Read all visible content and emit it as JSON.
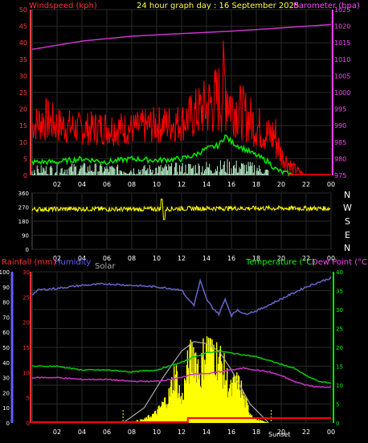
{
  "header": {
    "windspeed_label": "Windspeed (kph)",
    "title": "24 hour graph day : 16 September 2025",
    "barometer_label": "Barometer (hpa)"
  },
  "wind_dir_axis_labels": [
    "N",
    "W",
    "S",
    "E",
    "N"
  ],
  "lower_header": {
    "rainfall_label": "Rainfall (mm)",
    "humidity_label": "Humidity",
    "solar_label": "Solar",
    "temperature_label": "Temperature (°C)",
    "dewpoint_label": "Dew Point (°C)",
    "sunset_label": "Sunset"
  },
  "colors": {
    "windspeed": "#ff0000",
    "wind_avg": "#00ee00",
    "gust_fill": "#b8f0c8",
    "barometer": "#cc33cc",
    "wind_dir": "#ffff00",
    "rainfall": "#ff0000",
    "humidity": "#6666cc",
    "solar_fill": "#ffff00",
    "solar_max": "#aaaaaa",
    "temperature": "#00cc00",
    "dewpoint": "#cc33cc",
    "grid": "#2a2a2a",
    "axis_left_wind": "#ff4040",
    "axis_right_baro": "#ff44ff",
    "axis_humidity": "#6060ff",
    "axis_temp": "#00ff00",
    "axis_rain": "#ff3030"
  },
  "chart_data": [
    {
      "type": "line",
      "name": "wind-barometer",
      "x_ticks": [
        "02",
        "04",
        "06",
        "08",
        "10",
        "12",
        "14",
        "16",
        "18",
        "20",
        "22",
        "00"
      ],
      "y_left_ticks": [
        0,
        5,
        10,
        15,
        20,
        25,
        30,
        35,
        40,
        45,
        50
      ],
      "y_left_range": [
        0,
        50
      ],
      "y_right_ticks": [
        975,
        980,
        985,
        990,
        995,
        1000,
        1005,
        1010,
        1015,
        1020,
        1025
      ],
      "y_right_range": [
        975,
        1025
      ],
      "barometer": {
        "x": [
          0,
          4,
          8,
          12,
          16,
          20,
          24
        ],
        "y": [
          1013,
          1015.5,
          1017,
          1017.8,
          1018.5,
          1019.5,
          1020.5
        ]
      },
      "wind_avg": {
        "x": [
          0,
          2,
          4,
          6,
          8,
          10,
          12,
          13,
          14,
          15,
          15.5,
          16,
          17,
          18,
          19,
          19.5,
          20,
          20.5,
          21
        ],
        "y": [
          4,
          4,
          5,
          4,
          5,
          4.5,
          5,
          6,
          8,
          9,
          12,
          10,
          8,
          6,
          4,
          2,
          1,
          0.5,
          0
        ]
      },
      "wind_gust_envelope": {
        "x": [
          0,
          1,
          2,
          4,
          6,
          8,
          10,
          12,
          13,
          14,
          15,
          15.5,
          16,
          17,
          18,
          19,
          19.5,
          20,
          21,
          22
        ],
        "y": [
          20,
          24,
          21,
          19,
          20,
          19,
          21,
          22,
          26,
          30,
          35,
          44,
          30,
          27,
          22,
          18,
          20,
          10,
          4,
          0
        ]
      },
      "wind_gust_floor": {
        "x": [
          0,
          4,
          8,
          12,
          16,
          19,
          20,
          21
        ],
        "y": [
          10,
          9,
          9,
          10,
          12,
          6,
          2,
          0
        ]
      },
      "wind_avg_fill": {
        "x": [
          0,
          4,
          8,
          12,
          16,
          18,
          19
        ],
        "y": [
          1,
          2,
          1,
          2,
          3,
          2,
          0
        ]
      }
    },
    {
      "type": "line",
      "name": "wind-direction",
      "x_ticks": [
        "02",
        "04",
        "06",
        "08",
        "10",
        "12",
        "14",
        "16",
        "18",
        "20",
        "22",
        "00"
      ],
      "y_ticks": [
        0,
        90,
        180,
        270,
        360
      ],
      "y_range": [
        0,
        360
      ],
      "direction": {
        "x": [
          0,
          4,
          8,
          12,
          16,
          20,
          24
        ],
        "y": [
          255,
          258,
          255,
          260,
          262,
          262,
          260
        ]
      }
    },
    {
      "type": "line",
      "name": "rain-humidity-solar-temp",
      "x_ticks": [
        "02",
        "04",
        "06",
        "08",
        "10",
        "12",
        "14",
        "16",
        "18",
        "20",
        "22",
        "00"
      ],
      "y_humidity_ticks": [
        0,
        10,
        20,
        30,
        40,
        50,
        60,
        70,
        80,
        90,
        100
      ],
      "y_humidity_range": [
        0,
        100
      ],
      "y_rain_ticks": [
        0,
        5,
        10,
        15,
        20,
        25,
        30
      ],
      "y_rain_range": [
        0,
        30
      ],
      "y_temp_ticks": [
        0,
        5,
        10,
        15,
        20,
        25,
        30,
        35,
        40
      ],
      "y_temp_range": [
        0,
        40
      ],
      "humidity": {
        "x": [
          0,
          0.5,
          2,
          4,
          6,
          8,
          10,
          11,
          12,
          12.5,
          13,
          13.5,
          14,
          14.5,
          15,
          15.5,
          16,
          16.5,
          17,
          18,
          19,
          20,
          21,
          22,
          23,
          24
        ],
        "y": [
          85,
          88,
          89,
          91,
          92,
          91,
          90,
          89,
          88,
          82,
          78,
          94,
          82,
          76,
          72,
          82,
          71,
          75,
          72,
          74,
          78,
          82,
          86,
          90,
          93,
          96
        ]
      },
      "temperature": {
        "x": [
          0,
          2,
          4,
          6,
          8,
          10,
          11,
          12,
          13,
          14,
          15,
          16,
          17,
          18,
          19,
          20,
          21,
          22,
          23,
          24
        ],
        "y": [
          15,
          15,
          14,
          14,
          13.5,
          14,
          15,
          16,
          17.5,
          18.5,
          19,
          18.5,
          18,
          17.5,
          16.5,
          15.5,
          14.5,
          12.5,
          11,
          10.5
        ]
      },
      "dewpoint": {
        "x": [
          0,
          2,
          4,
          6,
          8,
          10,
          11,
          12,
          13,
          14,
          15,
          16,
          17,
          18,
          19,
          20,
          21,
          22,
          23,
          24
        ],
        "y": [
          12,
          12,
          11.5,
          11.5,
          11,
          11,
          11.5,
          12,
          13,
          13,
          13.5,
          14,
          14.5,
          14,
          13.5,
          12.5,
          11,
          10,
          9.5,
          9.5
        ]
      },
      "rainfall": {
        "x": [
          0,
          12.5,
          12.5,
          24
        ],
        "y": [
          0,
          0,
          0.8,
          0.8
        ]
      },
      "solar_max": {
        "x": [
          7.3,
          9,
          10.5,
          12,
          13,
          14,
          15,
          16,
          17.5,
          19
        ],
        "y": [
          0,
          4,
          12,
          19,
          21.5,
          21,
          19,
          14,
          5,
          0
        ]
      },
      "solar": {
        "x": [
          7.5,
          9,
          10,
          11,
          11.5,
          12,
          12.5,
          13,
          13.5,
          14,
          14.5,
          15,
          15.5,
          16,
          16.5,
          17,
          17.5,
          18,
          18.5,
          19
        ],
        "y": [
          0,
          1,
          3,
          8,
          15,
          6,
          16,
          21,
          14,
          24,
          22,
          19,
          14,
          9,
          14,
          7,
          3,
          1,
          0.5,
          0
        ]
      }
    }
  ]
}
